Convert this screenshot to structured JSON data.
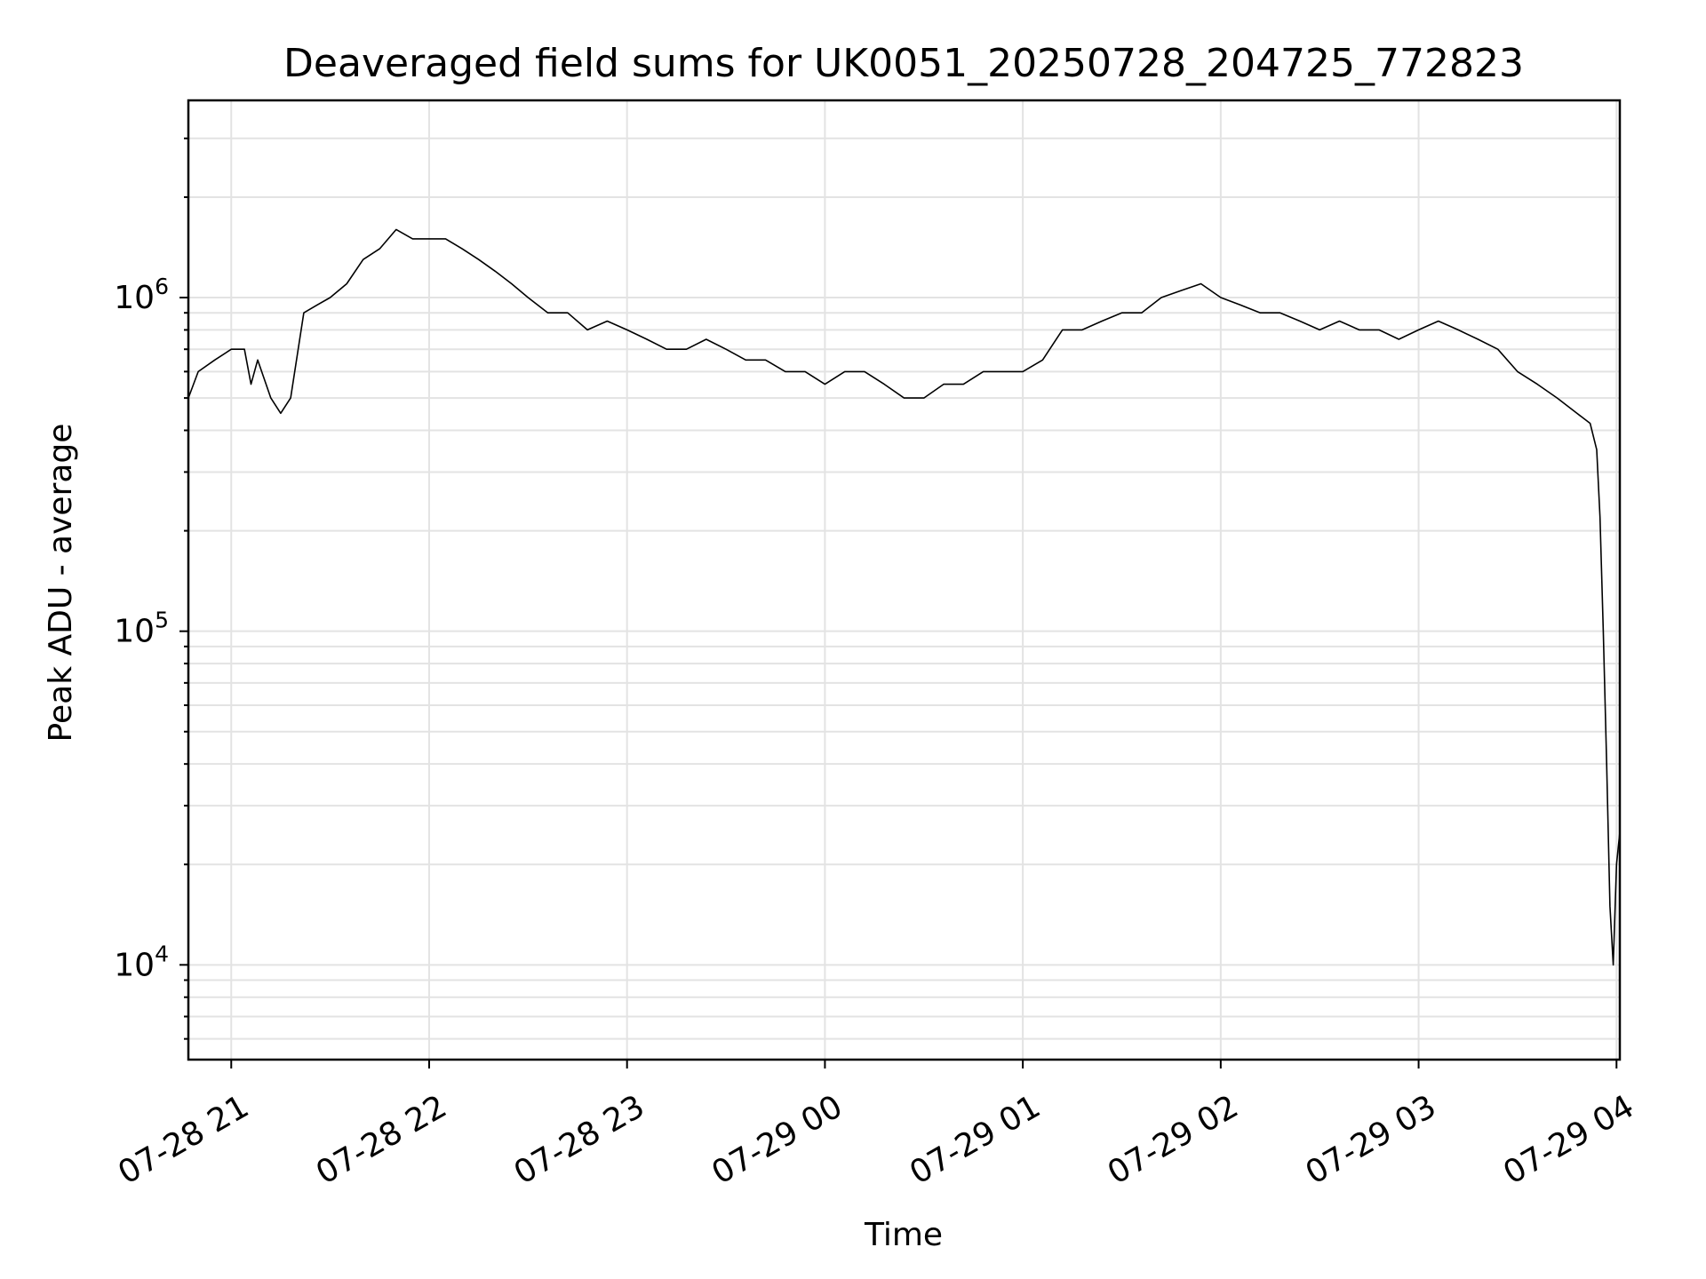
{
  "chart_data": {
    "type": "line",
    "title": "Deaveraged field sums for UK0051_20250728_204725_772823",
    "xlabel": "Time",
    "ylabel": "Peak ADU - average",
    "yscale": "log",
    "ylim": [
      5200,
      3900000
    ],
    "xlim": [
      "2025-07-28 20:47",
      "2025-07-29 04:01"
    ],
    "grid": true,
    "grid_color": "#e3e3e3",
    "line_color": "#000000",
    "x_ticks": [
      {
        "value": "2025-07-28 21:00",
        "label": "07-28 21"
      },
      {
        "value": "2025-07-28 22:00",
        "label": "07-28 22"
      },
      {
        "value": "2025-07-28 23:00",
        "label": "07-28 23"
      },
      {
        "value": "2025-07-29 00:00",
        "label": "07-29 00"
      },
      {
        "value": "2025-07-29 01:00",
        "label": "07-29 01"
      },
      {
        "value": "2025-07-29 02:00",
        "label": "07-29 02"
      },
      {
        "value": "2025-07-29 03:00",
        "label": "07-29 03"
      },
      {
        "value": "2025-07-29 04:00",
        "label": "07-29 04"
      }
    ],
    "y_ticks": [
      {
        "value": 10000,
        "base": "10",
        "exp": "4"
      },
      {
        "value": 100000,
        "base": "10",
        "exp": "5"
      },
      {
        "value": 1000000,
        "base": "10",
        "exp": "6"
      }
    ],
    "series": [
      {
        "x": [
          "2025-07-28 20:47",
          "2025-07-28 20:50",
          "2025-07-28 20:55",
          "2025-07-28 21:00",
          "2025-07-28 21:04",
          "2025-07-28 21:06",
          "2025-07-28 21:08",
          "2025-07-28 21:12",
          "2025-07-28 21:15",
          "2025-07-28 21:18",
          "2025-07-28 21:22",
          "2025-07-28 21:26",
          "2025-07-28 21:30",
          "2025-07-28 21:35",
          "2025-07-28 21:40",
          "2025-07-28 21:45",
          "2025-07-28 21:50",
          "2025-07-28 21:55",
          "2025-07-28 22:00",
          "2025-07-28 22:05",
          "2025-07-28 22:10",
          "2025-07-28 22:15",
          "2025-07-28 22:20",
          "2025-07-28 22:25",
          "2025-07-28 22:30",
          "2025-07-28 22:36",
          "2025-07-28 22:42",
          "2025-07-28 22:48",
          "2025-07-28 22:54",
          "2025-07-28 23:00",
          "2025-07-28 23:06",
          "2025-07-28 23:12",
          "2025-07-28 23:18",
          "2025-07-28 23:24",
          "2025-07-28 23:30",
          "2025-07-28 23:36",
          "2025-07-28 23:42",
          "2025-07-28 23:48",
          "2025-07-28 23:54",
          "2025-07-29 00:00",
          "2025-07-29 00:06",
          "2025-07-29 00:12",
          "2025-07-29 00:18",
          "2025-07-29 00:24",
          "2025-07-29 00:30",
          "2025-07-29 00:36",
          "2025-07-29 00:42",
          "2025-07-29 00:48",
          "2025-07-29 00:54",
          "2025-07-29 01:00",
          "2025-07-29 01:06",
          "2025-07-29 01:12",
          "2025-07-29 01:18",
          "2025-07-29 01:24",
          "2025-07-29 01:30",
          "2025-07-29 01:36",
          "2025-07-29 01:42",
          "2025-07-29 01:48",
          "2025-07-29 01:54",
          "2025-07-29 02:00",
          "2025-07-29 02:06",
          "2025-07-29 02:12",
          "2025-07-29 02:18",
          "2025-07-29 02:24",
          "2025-07-29 02:30",
          "2025-07-29 02:36",
          "2025-07-29 02:42",
          "2025-07-29 02:48",
          "2025-07-29 02:54",
          "2025-07-29 03:00",
          "2025-07-29 03:06",
          "2025-07-29 03:12",
          "2025-07-29 03:18",
          "2025-07-29 03:24",
          "2025-07-29 03:30",
          "2025-07-29 03:36",
          "2025-07-29 03:42",
          "2025-07-29 03:48",
          "2025-07-29 03:52",
          "2025-07-29 03:54",
          "2025-07-29 03:55",
          "2025-07-29 03:56",
          "2025-07-29 03:57",
          "2025-07-29 03:58",
          "2025-07-29 03:59",
          "2025-07-29 04:00",
          "2025-07-29 04:01"
        ],
        "y": [
          500000,
          600000,
          650000,
          700000,
          700000,
          550000,
          650000,
          500000,
          450000,
          500000,
          900000,
          950000,
          1000000,
          1100000,
          1300000,
          1400000,
          1600000,
          1500000,
          1500000,
          1500000,
          1400000,
          1300000,
          1200000,
          1100000,
          1000000,
          900000,
          900000,
          800000,
          850000,
          800000,
          750000,
          700000,
          700000,
          750000,
          700000,
          650000,
          650000,
          600000,
          600000,
          550000,
          600000,
          600000,
          550000,
          500000,
          500000,
          550000,
          550000,
          600000,
          600000,
          600000,
          650000,
          800000,
          800000,
          850000,
          900000,
          900000,
          1000000,
          1050000,
          1100000,
          1000000,
          950000,
          900000,
          900000,
          850000,
          800000,
          850000,
          800000,
          800000,
          750000,
          800000,
          850000,
          800000,
          750000,
          700000,
          600000,
          550000,
          500000,
          450000,
          420000,
          350000,
          220000,
          100000,
          40000,
          15000,
          10000,
          20000,
          25000
        ]
      }
    ]
  }
}
